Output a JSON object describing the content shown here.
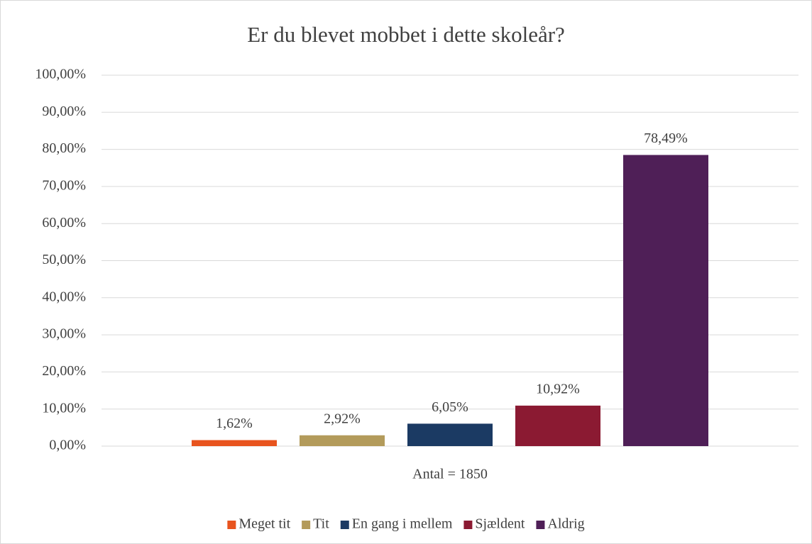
{
  "chart_data": {
    "type": "bar",
    "title": "Er du blevet mobbet i dette skoleår?",
    "categories": [
      "Antal = 1850"
    ],
    "series": [
      {
        "name": "Meget tit",
        "color": "#e8541e",
        "values": [
          1.62
        ],
        "value_labels": [
          "1,62%"
        ]
      },
      {
        "name": "Tit",
        "color": "#b39b5b",
        "values": [
          2.92
        ],
        "value_labels": [
          "2,92%"
        ]
      },
      {
        "name": "En gang i mellem",
        "color": "#1b3a63",
        "values": [
          6.05
        ],
        "value_labels": [
          "6,05%"
        ]
      },
      {
        "name": "Sjældent",
        "color": "#8b1a32",
        "values": [
          10.92
        ],
        "value_labels": [
          "10,92%"
        ]
      },
      {
        "name": "Aldrig",
        "color": "#4f1f57",
        "values": [
          78.49
        ],
        "value_labels": [
          "78,49%"
        ]
      }
    ],
    "ylim": [
      0,
      100
    ],
    "yticks": [
      {
        "value": 0,
        "label": "0,00%"
      },
      {
        "value": 10,
        "label": "10,00%"
      },
      {
        "value": 20,
        "label": "20,00%"
      },
      {
        "value": 30,
        "label": "30,00%"
      },
      {
        "value": 40,
        "label": "40,00%"
      },
      {
        "value": 50,
        "label": "50,00%"
      },
      {
        "value": 60,
        "label": "60,00%"
      },
      {
        "value": 70,
        "label": "70,00%"
      },
      {
        "value": 80,
        "label": "80,00%"
      },
      {
        "value": 90,
        "label": "90,00%"
      },
      {
        "value": 100,
        "label": "100,00%"
      }
    ],
    "grid": true,
    "legend": "bottom"
  }
}
